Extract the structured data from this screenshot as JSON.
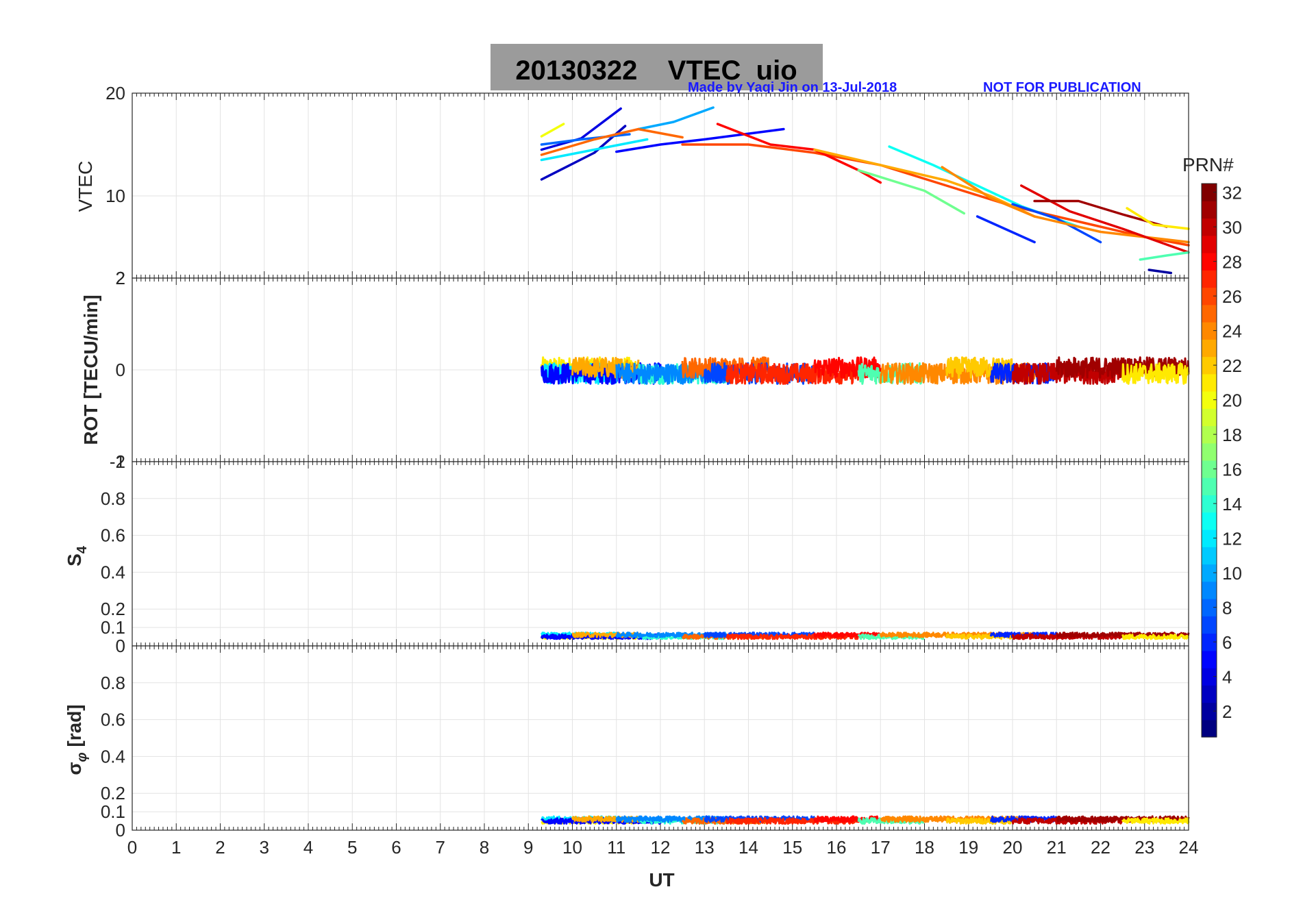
{
  "chart_data": {
    "type": "line",
    "title": "20130322    VTEC  uio",
    "credit": "Made by Yaqi Jin on 13-Jul-2018",
    "notice": "NOT FOR PUBLICATION",
    "xlabel": "UT",
    "xlim": [
      0,
      24
    ],
    "xticks": [
      "0",
      "1",
      "2",
      "3",
      "4",
      "5",
      "6",
      "7",
      "8",
      "9",
      "10",
      "11",
      "12",
      "13",
      "14",
      "15",
      "16",
      "17",
      "18",
      "19",
      "20",
      "21",
      "22",
      "23",
      "24"
    ],
    "colorbar": {
      "label": "PRN#",
      "range": [
        1,
        32
      ],
      "ticks": [
        "2",
        "4",
        "6",
        "8",
        "10",
        "12",
        "14",
        "16",
        "18",
        "20",
        "22",
        "24",
        "26",
        "28",
        "30",
        "32"
      ]
    },
    "panels": [
      {
        "name": "VTEC",
        "ylabel": "VTEC",
        "ylim": [
          2,
          20
        ],
        "yticks": [
          "2",
          "10",
          "20"
        ],
        "series": [
          {
            "prn": 3,
            "x": [
              9.3,
              10.5,
              11.2
            ],
            "y": [
              11.6,
              14.2,
              16.8
            ]
          },
          {
            "prn": 4,
            "x": [
              9.3,
              10.2,
              11.1
            ],
            "y": [
              14.5,
              15.6,
              18.5
            ]
          },
          {
            "prn": 8,
            "x": [
              9.3,
              10.2,
              11.3
            ],
            "y": [
              15.0,
              15.5,
              16.0
            ]
          },
          {
            "prn": 5,
            "x": [
              11.0,
              12.0,
              13.0,
              14.8
            ],
            "y": [
              14.3,
              15.0,
              15.5,
              16.5
            ]
          },
          {
            "prn": 10,
            "x": [
              11.5,
              12.3,
              13.2
            ],
            "y": [
              16.5,
              17.2,
              18.6
            ]
          },
          {
            "prn": 12,
            "x": [
              9.3,
              10.5,
              11.7
            ],
            "y": [
              13.5,
              14.5,
              15.5
            ]
          },
          {
            "prn": 20,
            "x": [
              9.3,
              9.8
            ],
            "y": [
              15.8,
              17.0
            ]
          },
          {
            "prn": 25,
            "x": [
              9.3,
              10.5,
              11.5,
              12.5
            ],
            "y": [
              14.0,
              15.5,
              16.5,
              15.7
            ]
          },
          {
            "prn": 26,
            "x": [
              12.5,
              14.0,
              15.5,
              17.0,
              18.5,
              20.0,
              21.5,
              23.0,
              24.0
            ],
            "y": [
              15.0,
              15.0,
              14.2,
              13.0,
              11.0,
              9.0,
              7.5,
              6.0,
              5.2
            ]
          },
          {
            "prn": 28,
            "x": [
              13.3,
              14.5,
              15.5,
              16.5,
              17.0
            ],
            "y": [
              17.0,
              15.0,
              14.5,
              12.5,
              11.3
            ]
          },
          {
            "prn": 23,
            "x": [
              15.5,
              16.5,
              17.5,
              18.5,
              19.5,
              20.5
            ],
            "y": [
              14.5,
              13.5,
              12.5,
              11.5,
              10.0,
              8.0
            ]
          },
          {
            "prn": 13,
            "x": [
              17.2,
              18.2,
              19.2,
              20.2,
              21.5
            ],
            "y": [
              14.8,
              13.0,
              11.0,
              9.0,
              7.0
            ]
          },
          {
            "prn": 16,
            "x": [
              16.5,
              18.0,
              18.9
            ],
            "y": [
              12.5,
              10.5,
              8.3
            ]
          },
          {
            "prn": 6,
            "x": [
              19.2,
              20.5
            ],
            "y": [
              8.0,
              5.5
            ]
          },
          {
            "prn": 7,
            "x": [
              20.0,
              21.0,
              22.0
            ],
            "y": [
              9.2,
              7.8,
              5.5
            ]
          },
          {
            "prn": 24,
            "x": [
              18.4,
              19.5,
              20.5,
              22.0,
              24.0
            ],
            "y": [
              12.8,
              9.8,
              8.0,
              6.5,
              5.5
            ]
          },
          {
            "prn": 29,
            "x": [
              20.2,
              21.3,
              22.5,
              24.0
            ],
            "y": [
              11.0,
              8.5,
              6.8,
              4.5
            ]
          },
          {
            "prn": 31,
            "x": [
              20.5,
              21.5,
              22.5,
              23.5
            ],
            "y": [
              9.5,
              9.5,
              8.2,
              7.0
            ]
          },
          {
            "prn": 21,
            "x": [
              22.6,
              23.2,
              24.0
            ],
            "y": [
              8.8,
              7.2,
              6.8
            ]
          },
          {
            "prn": 15,
            "x": [
              22.9,
              23.5,
              24.0
            ],
            "y": [
              3.8,
              4.2,
              4.5
            ]
          },
          {
            "prn": 2,
            "x": [
              23.1,
              23.6
            ],
            "y": [
              2.8,
              2.5
            ]
          }
        ]
      },
      {
        "name": "ROT",
        "ylabel": "ROT [TECU/min]",
        "ylim": [
          -2,
          2
        ],
        "yticks": [
          "-2",
          "0",
          "2"
        ]
      },
      {
        "name": "S4",
        "ylabel": "S4",
        "ylim": [
          0,
          1
        ],
        "yticks": [
          "0",
          "0.1",
          "0.2",
          "0.4",
          "0.6",
          "0.8",
          "1"
        ]
      },
      {
        "name": "sigma_phi",
        "ylabel": "σφ [rad]",
        "ylim": [
          0,
          1
        ],
        "yticks": [
          "0",
          "0.1",
          "0.2",
          "0.4",
          "0.6",
          "0.8"
        ]
      }
    ]
  }
}
